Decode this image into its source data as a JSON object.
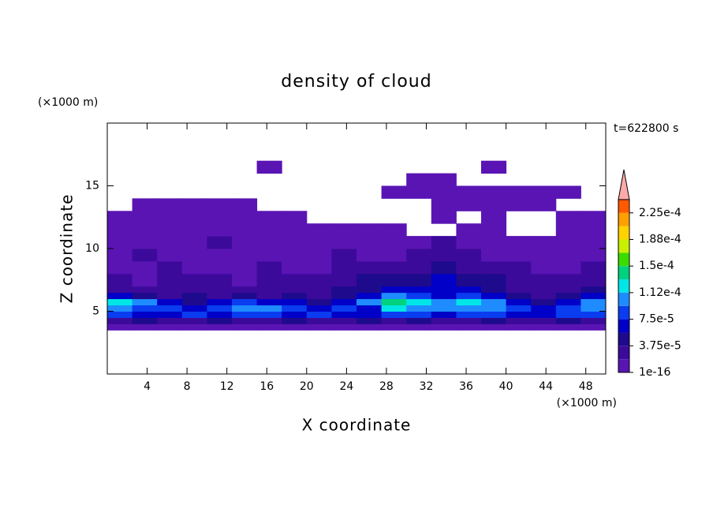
{
  "chart_data": {
    "type": "contour",
    "title": "density of cloud",
    "xlabel": "X coordinate",
    "ylabel": "Z coordinate",
    "xunit": "(×1000 m)",
    "yunit": "(×1000 m)",
    "annotation": "t=622800 s",
    "xlim": [
      0,
      50
    ],
    "ylim": [
      0,
      20
    ],
    "xticks": [
      4,
      8,
      12,
      16,
      20,
      24,
      28,
      32,
      36,
      40,
      44,
      48
    ],
    "yticks": [
      5,
      10,
      15
    ],
    "x_edges": [
      0,
      2.5,
      5,
      7.5,
      10,
      12.5,
      15,
      17.5,
      20,
      22.5,
      25,
      27.5,
      30,
      32.5,
      35,
      37.5,
      40,
      42.5,
      45,
      47.5,
      50
    ],
    "z_edges": [
      3.5,
      4,
      4.5,
      5,
      5.5,
      6,
      6.5,
      7,
      8,
      9,
      10,
      11,
      12,
      13,
      14,
      15,
      16,
      17
    ],
    "values": [
      [
        1e-05,
        1e-05,
        1e-05,
        1e-05,
        1e-05,
        1e-05,
        1e-05,
        1e-05,
        1e-05,
        1e-05,
        1e-05,
        1e-05,
        1e-05,
        1e-05,
        1e-05,
        1e-05,
        1e-05,
        1e-05,
        1e-05,
        1e-05
      ],
      [
        2.5e-05,
        4.5e-05,
        2.5e-05,
        2.5e-05,
        4.5e-05,
        2.5e-05,
        2.5e-05,
        4.5e-05,
        2.5e-05,
        2.5e-05,
        4.5e-05,
        2.5e-05,
        4.5e-05,
        2.5e-05,
        2.5e-05,
        4.5e-05,
        2.5e-05,
        2.5e-05,
        4.5e-05,
        2.5e-05
      ],
      [
        8.5e-05,
        6.5e-05,
        6.5e-05,
        8.5e-05,
        6.5e-05,
        8.5e-05,
        8.5e-05,
        6.5e-05,
        8.5e-05,
        6.5e-05,
        6.5e-05,
        8.5e-05,
        8.5e-05,
        6.5e-05,
        8.5e-05,
        8.5e-05,
        6.5e-05,
        6.5e-05,
        8.5e-05,
        8.5e-05
      ],
      [
        0.000105,
        8.5e-05,
        8.5e-05,
        6.5e-05,
        8.5e-05,
        0.000105,
        0.000105,
        8.5e-05,
        6.5e-05,
        8.5e-05,
        6.5e-05,
        0.00012,
        0.000105,
        0.000105,
        0.000105,
        0.000105,
        8.5e-05,
        6.5e-05,
        8.5e-05,
        0.000105
      ],
      [
        0.00012,
        0.000105,
        6.5e-05,
        4.5e-05,
        6.5e-05,
        8.5e-05,
        6.5e-05,
        6.5e-05,
        4.5e-05,
        6.5e-05,
        0.000105,
        0.00014,
        0.00012,
        0.000105,
        0.00012,
        0.000105,
        6.5e-05,
        4.5e-05,
        6.5e-05,
        0.000105
      ],
      [
        6.5e-05,
        4.5e-05,
        2.5e-05,
        4.5e-05,
        2.5e-05,
        4.5e-05,
        2.5e-05,
        4.5e-05,
        2.5e-05,
        4.5e-05,
        6.5e-05,
        0.000105,
        8.5e-05,
        6.5e-05,
        8.5e-05,
        6.5e-05,
        4.5e-05,
        2.5e-05,
        4.5e-05,
        6.5e-05
      ],
      [
        2.5e-05,
        2.5e-05,
        2.5e-05,
        2.5e-05,
        2.5e-05,
        2.5e-05,
        2.5e-05,
        2.5e-05,
        2.5e-05,
        4.5e-05,
        4.5e-05,
        6.5e-05,
        6.5e-05,
        6.5e-05,
        6.5e-05,
        4.5e-05,
        2.5e-05,
        2.5e-05,
        2.5e-05,
        4.5e-05
      ],
      [
        2.5e-05,
        1e-05,
        2.5e-05,
        2.5e-05,
        2.5e-05,
        1e-05,
        2.5e-05,
        2.5e-05,
        2.5e-05,
        2.5e-05,
        4.5e-05,
        4.5e-05,
        4.5e-05,
        6.5e-05,
        4.5e-05,
        4.5e-05,
        2.5e-05,
        2.5e-05,
        2.5e-05,
        2.5e-05
      ],
      [
        1e-05,
        1e-05,
        2.5e-05,
        1e-05,
        1e-05,
        1e-05,
        2.5e-05,
        1e-05,
        1e-05,
        2.5e-05,
        2.5e-05,
        2.5e-05,
        2.5e-05,
        4.5e-05,
        2.5e-05,
        2.5e-05,
        2.5e-05,
        1e-05,
        1e-05,
        2.5e-05
      ],
      [
        1e-05,
        2.5e-05,
        1e-05,
        1e-05,
        1e-05,
        1e-05,
        1e-05,
        1e-05,
        1e-05,
        2.5e-05,
        1e-05,
        1e-05,
        2.5e-05,
        2.5e-05,
        2.5e-05,
        1e-05,
        1e-05,
        1e-05,
        1e-05,
        1e-05
      ],
      [
        1e-05,
        1e-05,
        1e-05,
        1e-05,
        2.5e-05,
        1e-05,
        1e-05,
        1e-05,
        1e-05,
        1e-05,
        1e-05,
        1e-05,
        1e-05,
        2.5e-05,
        1e-05,
        1e-05,
        1e-05,
        1e-05,
        1e-05,
        1e-05
      ],
      [
        1e-05,
        1e-05,
        1e-05,
        1e-05,
        1e-05,
        1e-05,
        1e-05,
        1e-05,
        1e-05,
        1e-05,
        1e-05,
        1e-05,
        null,
        null,
        1e-05,
        1e-05,
        null,
        null,
        1e-05,
        1e-05
      ],
      [
        1e-05,
        1e-05,
        1e-05,
        1e-05,
        1e-05,
        1e-05,
        1e-05,
        1e-05,
        null,
        null,
        null,
        null,
        null,
        1e-05,
        null,
        1e-05,
        null,
        null,
        1e-05,
        1e-05
      ],
      [
        null,
        1e-05,
        1e-05,
        1e-05,
        1e-05,
        1e-05,
        null,
        null,
        null,
        null,
        null,
        null,
        null,
        1e-05,
        1e-05,
        1e-05,
        1e-05,
        1e-05,
        null,
        null
      ],
      [
        null,
        null,
        null,
        null,
        null,
        null,
        null,
        null,
        null,
        null,
        null,
        1e-05,
        1e-05,
        1e-05,
        1e-05,
        1e-05,
        1e-05,
        1e-05,
        1e-05,
        null
      ],
      [
        null,
        null,
        null,
        null,
        null,
        null,
        null,
        null,
        null,
        null,
        null,
        null,
        1e-05,
        1e-05,
        null,
        null,
        null,
        null,
        null,
        null
      ],
      [
        null,
        null,
        null,
        null,
        null,
        null,
        1e-05,
        null,
        null,
        null,
        null,
        null,
        null,
        null,
        null,
        1e-05,
        null,
        null,
        null,
        null
      ]
    ],
    "levels": [
      1e-16,
      1.875e-05,
      3.75e-05,
      5.625e-05,
      7.5e-05,
      9.375e-05,
      0.0001125,
      0.00013125,
      0.00015,
      0.00016875,
      0.0001875,
      0.00020625,
      0.000225,
      0.00024375
    ],
    "colors": [
      "#5a14b4",
      "#3c0a9a",
      "#1e0a8c",
      "#0000c8",
      "#0a3cf0",
      "#1e8cff",
      "#00e6e6",
      "#00d27d",
      "#3cdc00",
      "#c8f000",
      "#ffd200",
      "#ffa000",
      "#ff5a00"
    ],
    "extend_color": "#ffaaaa",
    "colorbar_ticks": [
      {
        "value": 1e-16,
        "label": "1e-16"
      },
      {
        "value": 3.75e-05,
        "label": "3.75e-5"
      },
      {
        "value": 7.5e-05,
        "label": "7.5e-5"
      },
      {
        "value": 0.0001125,
        "label": "1.12e-4"
      },
      {
        "value": 0.00015,
        "label": "1.5e-4"
      },
      {
        "value": 0.0001875,
        "label": "1.88e-4"
      },
      {
        "value": 0.000225,
        "label": "2.25e-4"
      }
    ]
  }
}
